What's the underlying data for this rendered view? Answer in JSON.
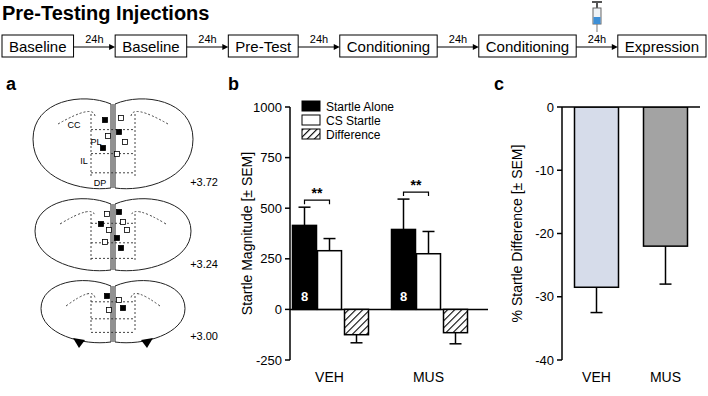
{
  "title": "Pre-Testing Injections",
  "timeline": {
    "steps": [
      "Baseline",
      "Baseline",
      "Pre-Test",
      "Conditioning",
      "Conditioning",
      "Expression"
    ],
    "intervals": [
      "24h",
      "24h",
      "24h",
      "24h",
      "24h"
    ]
  },
  "panel_labels": [
    "a",
    "b",
    "c"
  ],
  "atlas": {
    "regions": [
      "CC",
      "PL",
      "IL",
      "DP"
    ],
    "sections": [
      "+3.72",
      "+3.24",
      "+3.00"
    ]
  },
  "chart_data": [
    {
      "type": "bar",
      "y_label": "Startle Magnitude [± SEM]",
      "categories": [
        "VEH",
        "MUS"
      ],
      "series": [
        {
          "name": "Startle Alone",
          "color": "#000000",
          "values": [
            415,
            395
          ],
          "errors": [
            90,
            150
          ]
        },
        {
          "name": "CS Startle",
          "color": "#ffffff",
          "values": [
            290,
            275
          ],
          "errors": [
            60,
            110
          ]
        },
        {
          "name": "Difference",
          "color": "#000000",
          "marker": "hatch",
          "values": [
            -125,
            -115
          ],
          "errors": [
            40,
            55
          ]
        }
      ],
      "ylim": [
        -250,
        1000
      ],
      "yticks": [
        -250,
        0,
        250,
        500,
        750,
        1000
      ],
      "legend": "upper left",
      "significance": [
        "**",
        "**"
      ],
      "n": [
        8,
        8
      ]
    },
    {
      "type": "bar",
      "y_label": "% Startle Difference [± SEM]",
      "categories": [
        "VEH",
        "MUS"
      ],
      "values": [
        -28.5,
        -22
      ],
      "errors": [
        4,
        6
      ],
      "colors": [
        "#d6dcea",
        "#a3a3a3"
      ],
      "ylim": [
        -40,
        0
      ],
      "yticks": [
        -40,
        -30,
        -20,
        -10,
        0
      ]
    }
  ]
}
